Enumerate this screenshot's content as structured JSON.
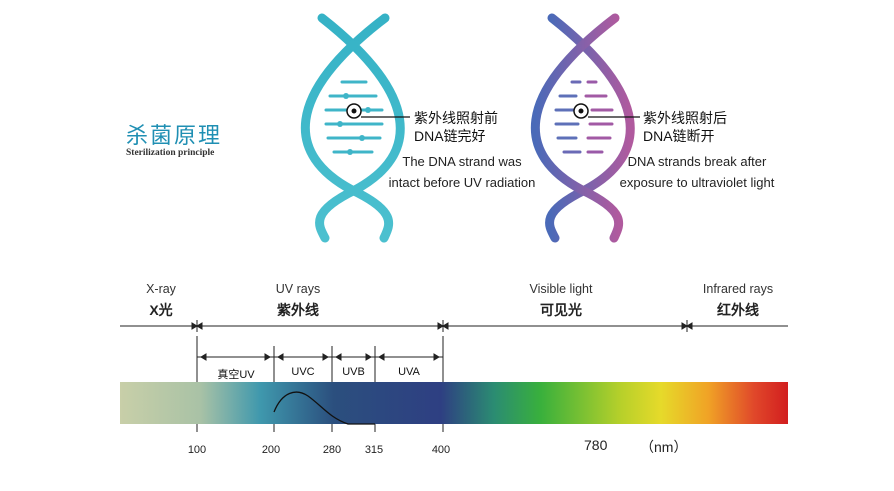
{
  "heading": {
    "cn": "杀菌原理",
    "en": "Sterilization principle"
  },
  "before": {
    "label_cn_1": "紫外线照射前",
    "label_cn_2": "DNA链完好",
    "caption_1": "The DNA strand was",
    "caption_2": "intact before UV radiation"
  },
  "after": {
    "label_cn_1": "紫外线照射后",
    "label_cn_2": "DNA链断开",
    "caption_1": "DNA strands break after",
    "caption_2": "exposure to ultraviolet light"
  },
  "spectrum": {
    "bands": [
      {
        "en": "X-ray",
        "cn": "X光"
      },
      {
        "en": "UV rays",
        "cn": "紫外线"
      },
      {
        "en": "Visible light",
        "cn": "可见光"
      },
      {
        "en": "Infrared rays",
        "cn": "红外线"
      }
    ],
    "uv_bands": [
      "真空UV",
      "UVC",
      "UVB",
      "UVA"
    ],
    "ticks": [
      "100",
      "200",
      "280",
      "315",
      "400"
    ],
    "visible_end": "780",
    "unit": "（nm）"
  },
  "colors": {
    "teal": "#3fb5c8",
    "purple": "#9a5aa8",
    "title": "#1f8fb3"
  }
}
